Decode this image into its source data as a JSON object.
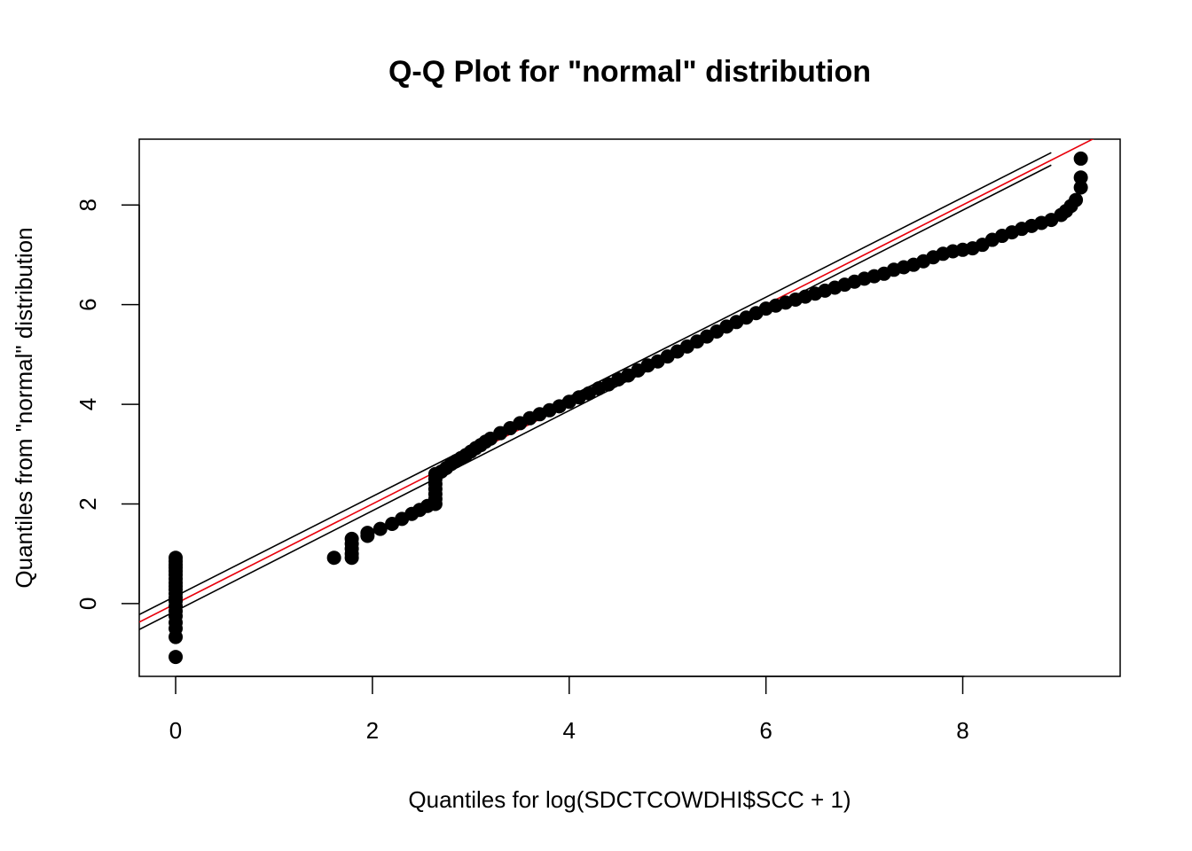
{
  "chart_data": {
    "type": "scatter",
    "title": "Q-Q Plot for \"normal\" distribution",
    "xlabel": "Quantiles for log(SDCTCOWDHI$SCC + 1)",
    "ylabel": "Quantiles from \"normal\" distribution",
    "xlim": [
      -0.37,
      9.6
    ],
    "ylim": [
      -1.46,
      9.32
    ],
    "x_ticks": [
      0,
      2,
      4,
      6,
      8
    ],
    "x_tick_labels": [
      "0",
      "2",
      "4",
      "6",
      "8"
    ],
    "y_ticks": [
      0,
      2,
      4,
      6,
      8
    ],
    "y_tick_labels": [
      "0",
      "2",
      "4",
      "6",
      "8"
    ],
    "grid": false,
    "legend": "none",
    "colors": {
      "points": "#000000",
      "fit_line": "#e8000b",
      "band_lines": "#000000",
      "axes": "#000000"
    },
    "series": [
      {
        "type": "points",
        "points": [
          [
            0,
            0.92
          ],
          [
            0,
            0.85
          ],
          [
            0,
            0.78
          ],
          [
            0,
            0.72
          ],
          [
            0,
            0.65
          ],
          [
            0,
            0.58
          ],
          [
            0,
            0.5
          ],
          [
            0,
            0.42
          ],
          [
            0,
            0.35
          ],
          [
            0,
            0.28
          ],
          [
            0,
            0.2
          ],
          [
            0,
            0.12
          ],
          [
            0,
            0.05
          ],
          [
            0,
            -0.05
          ],
          [
            0,
            -0.15
          ],
          [
            0,
            -0.25
          ],
          [
            0,
            -0.38
          ],
          [
            0,
            -0.5
          ],
          [
            0,
            -0.67
          ],
          [
            0,
            -1.07
          ],
          [
            1.61,
            0.92
          ],
          [
            1.79,
            0.92
          ],
          [
            1.79,
            1.0
          ],
          [
            1.79,
            1.1
          ],
          [
            1.79,
            1.2
          ],
          [
            1.79,
            1.3
          ],
          [
            1.95,
            1.36
          ],
          [
            1.95,
            1.42
          ],
          [
            2.08,
            1.5
          ],
          [
            2.2,
            1.6
          ],
          [
            2.3,
            1.7
          ],
          [
            2.4,
            1.8
          ],
          [
            2.48,
            1.88
          ],
          [
            2.56,
            1.96
          ],
          [
            2.64,
            2.0
          ],
          [
            2.64,
            2.1
          ],
          [
            2.64,
            2.2
          ],
          [
            2.64,
            2.3
          ],
          [
            2.64,
            2.4
          ],
          [
            2.64,
            2.5
          ],
          [
            2.64,
            2.6
          ],
          [
            2.7,
            2.65
          ],
          [
            2.75,
            2.72
          ],
          [
            2.8,
            2.8
          ],
          [
            2.85,
            2.86
          ],
          [
            2.9,
            2.92
          ],
          [
            2.95,
            2.98
          ],
          [
            3.0,
            3.05
          ],
          [
            3.05,
            3.12
          ],
          [
            3.1,
            3.18
          ],
          [
            3.15,
            3.25
          ],
          [
            3.2,
            3.31
          ],
          [
            3.3,
            3.42
          ],
          [
            3.4,
            3.52
          ],
          [
            3.5,
            3.62
          ],
          [
            3.6,
            3.72
          ],
          [
            3.7,
            3.8
          ],
          [
            3.8,
            3.88
          ],
          [
            3.9,
            3.96
          ],
          [
            4.0,
            4.05
          ],
          [
            4.1,
            4.14
          ],
          [
            4.2,
            4.22
          ],
          [
            4.3,
            4.32
          ],
          [
            4.4,
            4.4
          ],
          [
            4.5,
            4.5
          ],
          [
            4.6,
            4.58
          ],
          [
            4.7,
            4.68
          ],
          [
            4.8,
            4.78
          ],
          [
            4.9,
            4.86
          ],
          [
            5.0,
            4.96
          ],
          [
            5.1,
            5.06
          ],
          [
            5.2,
            5.16
          ],
          [
            5.3,
            5.26
          ],
          [
            5.4,
            5.36
          ],
          [
            5.5,
            5.46
          ],
          [
            5.6,
            5.56
          ],
          [
            5.7,
            5.65
          ],
          [
            5.8,
            5.74
          ],
          [
            5.9,
            5.83
          ],
          [
            6.0,
            5.92
          ],
          [
            6.1,
            5.98
          ],
          [
            6.2,
            6.04
          ],
          [
            6.3,
            6.1
          ],
          [
            6.4,
            6.16
          ],
          [
            6.5,
            6.22
          ],
          [
            6.6,
            6.28
          ],
          [
            6.7,
            6.34
          ],
          [
            6.8,
            6.4
          ],
          [
            6.9,
            6.46
          ],
          [
            7.0,
            6.52
          ],
          [
            7.1,
            6.57
          ],
          [
            7.2,
            6.62
          ],
          [
            7.3,
            6.7
          ],
          [
            7.4,
            6.75
          ],
          [
            7.5,
            6.8
          ],
          [
            7.6,
            6.87
          ],
          [
            7.7,
            6.95
          ],
          [
            7.8,
            7.02
          ],
          [
            7.9,
            7.07
          ],
          [
            8.0,
            7.1
          ],
          [
            8.1,
            7.13
          ],
          [
            8.2,
            7.2
          ],
          [
            8.3,
            7.3
          ],
          [
            8.4,
            7.38
          ],
          [
            8.5,
            7.45
          ],
          [
            8.6,
            7.52
          ],
          [
            8.7,
            7.58
          ],
          [
            8.8,
            7.64
          ],
          [
            8.9,
            7.7
          ],
          [
            9.0,
            7.8
          ],
          [
            9.05,
            7.88
          ],
          [
            9.1,
            7.98
          ],
          [
            9.15,
            8.1
          ],
          [
            9.2,
            8.35
          ],
          [
            9.2,
            8.55
          ],
          [
            9.2,
            8.93
          ]
        ]
      },
      {
        "type": "line",
        "color": "red",
        "from": [
          -0.37,
          -0.37
        ],
        "to": [
          9.6,
          9.6
        ]
      },
      {
        "type": "line",
        "color": "black",
        "from": [
          -0.37,
          -0.22
        ],
        "to": [
          8.9,
          9.05
        ]
      },
      {
        "type": "line",
        "color": "black",
        "from": [
          -0.37,
          -0.52
        ],
        "to": [
          8.9,
          8.8
        ]
      }
    ]
  }
}
